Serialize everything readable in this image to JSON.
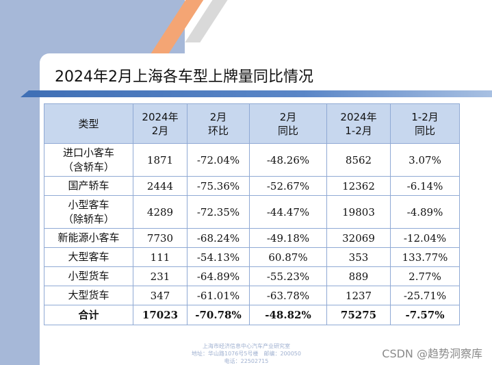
{
  "title": "2024年2月上海各车型上牌量同比情况",
  "table": {
    "headers": [
      [
        "类型"
      ],
      [
        "2024年",
        "2月"
      ],
      [
        "2月",
        "环比"
      ],
      [
        "2月",
        "同比"
      ],
      [
        "2024年",
        "1-2月"
      ],
      [
        "1-2月",
        "同比"
      ]
    ],
    "rows": [
      {
        "name": [
          "进口小客车",
          "（含轿车）"
        ],
        "values": [
          "1871",
          "-72.04%",
          "-48.26%",
          "8562",
          "3.07%"
        ]
      },
      {
        "name": [
          "国产轿车"
        ],
        "values": [
          "2444",
          "-75.36%",
          "-52.67%",
          "12362",
          "-6.14%"
        ]
      },
      {
        "name": [
          "小型客车",
          "（除轿车）"
        ],
        "values": [
          "4289",
          "-72.35%",
          "-44.47%",
          "19803",
          "-4.89%"
        ]
      },
      {
        "name": [
          "新能源小客车"
        ],
        "values": [
          "7730",
          "-68.24%",
          "-49.18%",
          "32069",
          "-12.04%"
        ]
      },
      {
        "name": [
          "大型客车"
        ],
        "values": [
          "111",
          "-54.13%",
          "60.87%",
          "353",
          "133.77%"
        ]
      },
      {
        "name": [
          "小型货车"
        ],
        "values": [
          "231",
          "-64.89%",
          "-55.23%",
          "889",
          "2.77%"
        ]
      },
      {
        "name": [
          "大型货车"
        ],
        "values": [
          "347",
          "-61.01%",
          "-63.78%",
          "1237",
          "-25.71%"
        ]
      }
    ],
    "total": {
      "name": "合计",
      "values": [
        "17023",
        "-70.78%",
        "-48.82%",
        "75275",
        "-7.57%"
      ]
    }
  },
  "footer": {
    "line1": "上海市经济信息中心汽车产业研究室",
    "line2": "地址：华山路1076号5号楼　邮编：200050",
    "line3": "电话：22502715"
  },
  "watermark": "CSDN @趋势洞察库"
}
